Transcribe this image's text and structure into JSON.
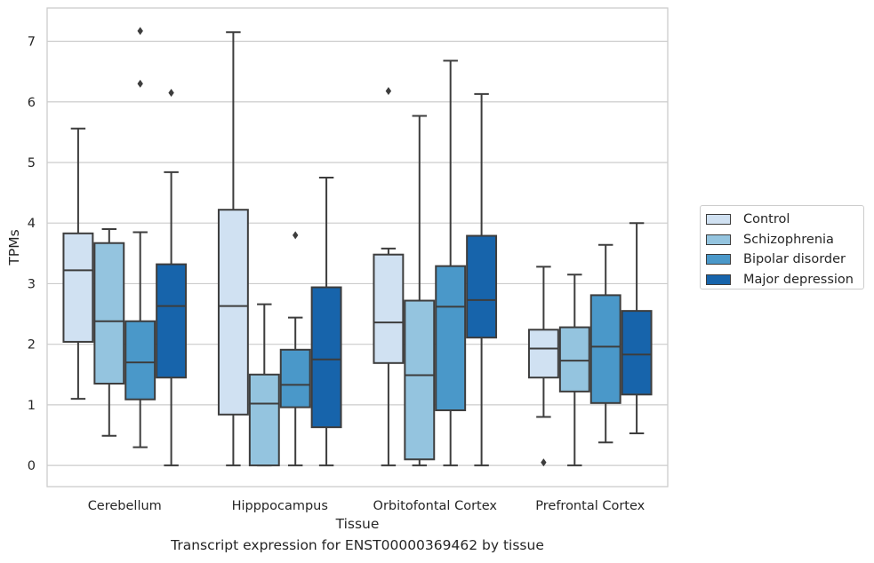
{
  "chart_data": {
    "type": "box",
    "title": "",
    "caption": "Transcript expression for ENST00000369462 by tissue",
    "xlabel": "Tissue",
    "ylabel": "TPMs",
    "ylim": [
      -0.35,
      7.55
    ],
    "yticks": [
      0,
      1,
      2,
      3,
      4,
      5,
      6,
      7
    ],
    "grid": "horizontal",
    "legend_position": "outside-right",
    "categories": [
      "Cerebellum",
      "Hipppocampus",
      "Orbitofontal Cortex",
      "Prefrontal Cortex"
    ],
    "series": [
      {
        "name": "Control",
        "color": "#d0e1f2",
        "boxes": [
          {
            "whislo": 1.1,
            "q1": 2.04,
            "med": 3.22,
            "q3": 3.83,
            "whishi": 5.56,
            "fliers": []
          },
          {
            "whislo": 0.0,
            "q1": 0.84,
            "med": 2.63,
            "q3": 4.22,
            "whishi": 7.15,
            "fliers": []
          },
          {
            "whislo": 0.0,
            "q1": 1.69,
            "med": 2.36,
            "q3": 3.48,
            "whishi": 3.58,
            "fliers": [
              6.18
            ]
          },
          {
            "whislo": 0.8,
            "q1": 1.45,
            "med": 1.93,
            "q3": 2.24,
            "whishi": 3.28,
            "fliers": [
              0.05
            ]
          }
        ]
      },
      {
        "name": "Schizophrenia",
        "color": "#94c4df",
        "boxes": [
          {
            "whislo": 0.49,
            "q1": 1.35,
            "med": 2.38,
            "q3": 3.67,
            "whishi": 3.9,
            "fliers": []
          },
          {
            "whislo": 0.0,
            "q1": 0.0,
            "med": 1.02,
            "q3": 1.5,
            "whishi": 2.66,
            "fliers": []
          },
          {
            "whislo": 0.0,
            "q1": 0.1,
            "med": 1.49,
            "q3": 2.72,
            "whishi": 5.77,
            "fliers": []
          },
          {
            "whislo": 0.0,
            "q1": 1.22,
            "med": 1.73,
            "q3": 2.28,
            "whishi": 3.15,
            "fliers": []
          }
        ]
      },
      {
        "name": "Bipolar disorder",
        "color": "#4a98c9",
        "boxes": [
          {
            "whislo": 0.3,
            "q1": 1.09,
            "med": 1.7,
            "q3": 2.38,
            "whishi": 3.85,
            "fliers": [
              7.17,
              6.3
            ]
          },
          {
            "whislo": 0.0,
            "q1": 0.96,
            "med": 1.33,
            "q3": 1.91,
            "whishi": 2.44,
            "fliers": [
              3.8
            ]
          },
          {
            "whislo": 0.0,
            "q1": 0.91,
            "med": 2.62,
            "q3": 3.29,
            "whishi": 6.68,
            "fliers": []
          },
          {
            "whislo": 0.38,
            "q1": 1.03,
            "med": 1.96,
            "q3": 2.81,
            "whishi": 3.64,
            "fliers": []
          }
        ]
      },
      {
        "name": "Major depression",
        "color": "#1764ab",
        "boxes": [
          {
            "whislo": 0.0,
            "q1": 1.45,
            "med": 2.63,
            "q3": 3.32,
            "whishi": 4.84,
            "fliers": [
              6.15
            ]
          },
          {
            "whislo": 0.0,
            "q1": 0.63,
            "med": 1.75,
            "q3": 2.94,
            "whishi": 4.75,
            "fliers": []
          },
          {
            "whislo": 0.0,
            "q1": 2.11,
            "med": 2.73,
            "q3": 3.79,
            "whishi": 6.13,
            "fliers": []
          },
          {
            "whislo": 0.53,
            "q1": 1.17,
            "med": 1.83,
            "q3": 2.55,
            "whishi": 4.0,
            "fliers": []
          }
        ]
      }
    ]
  }
}
